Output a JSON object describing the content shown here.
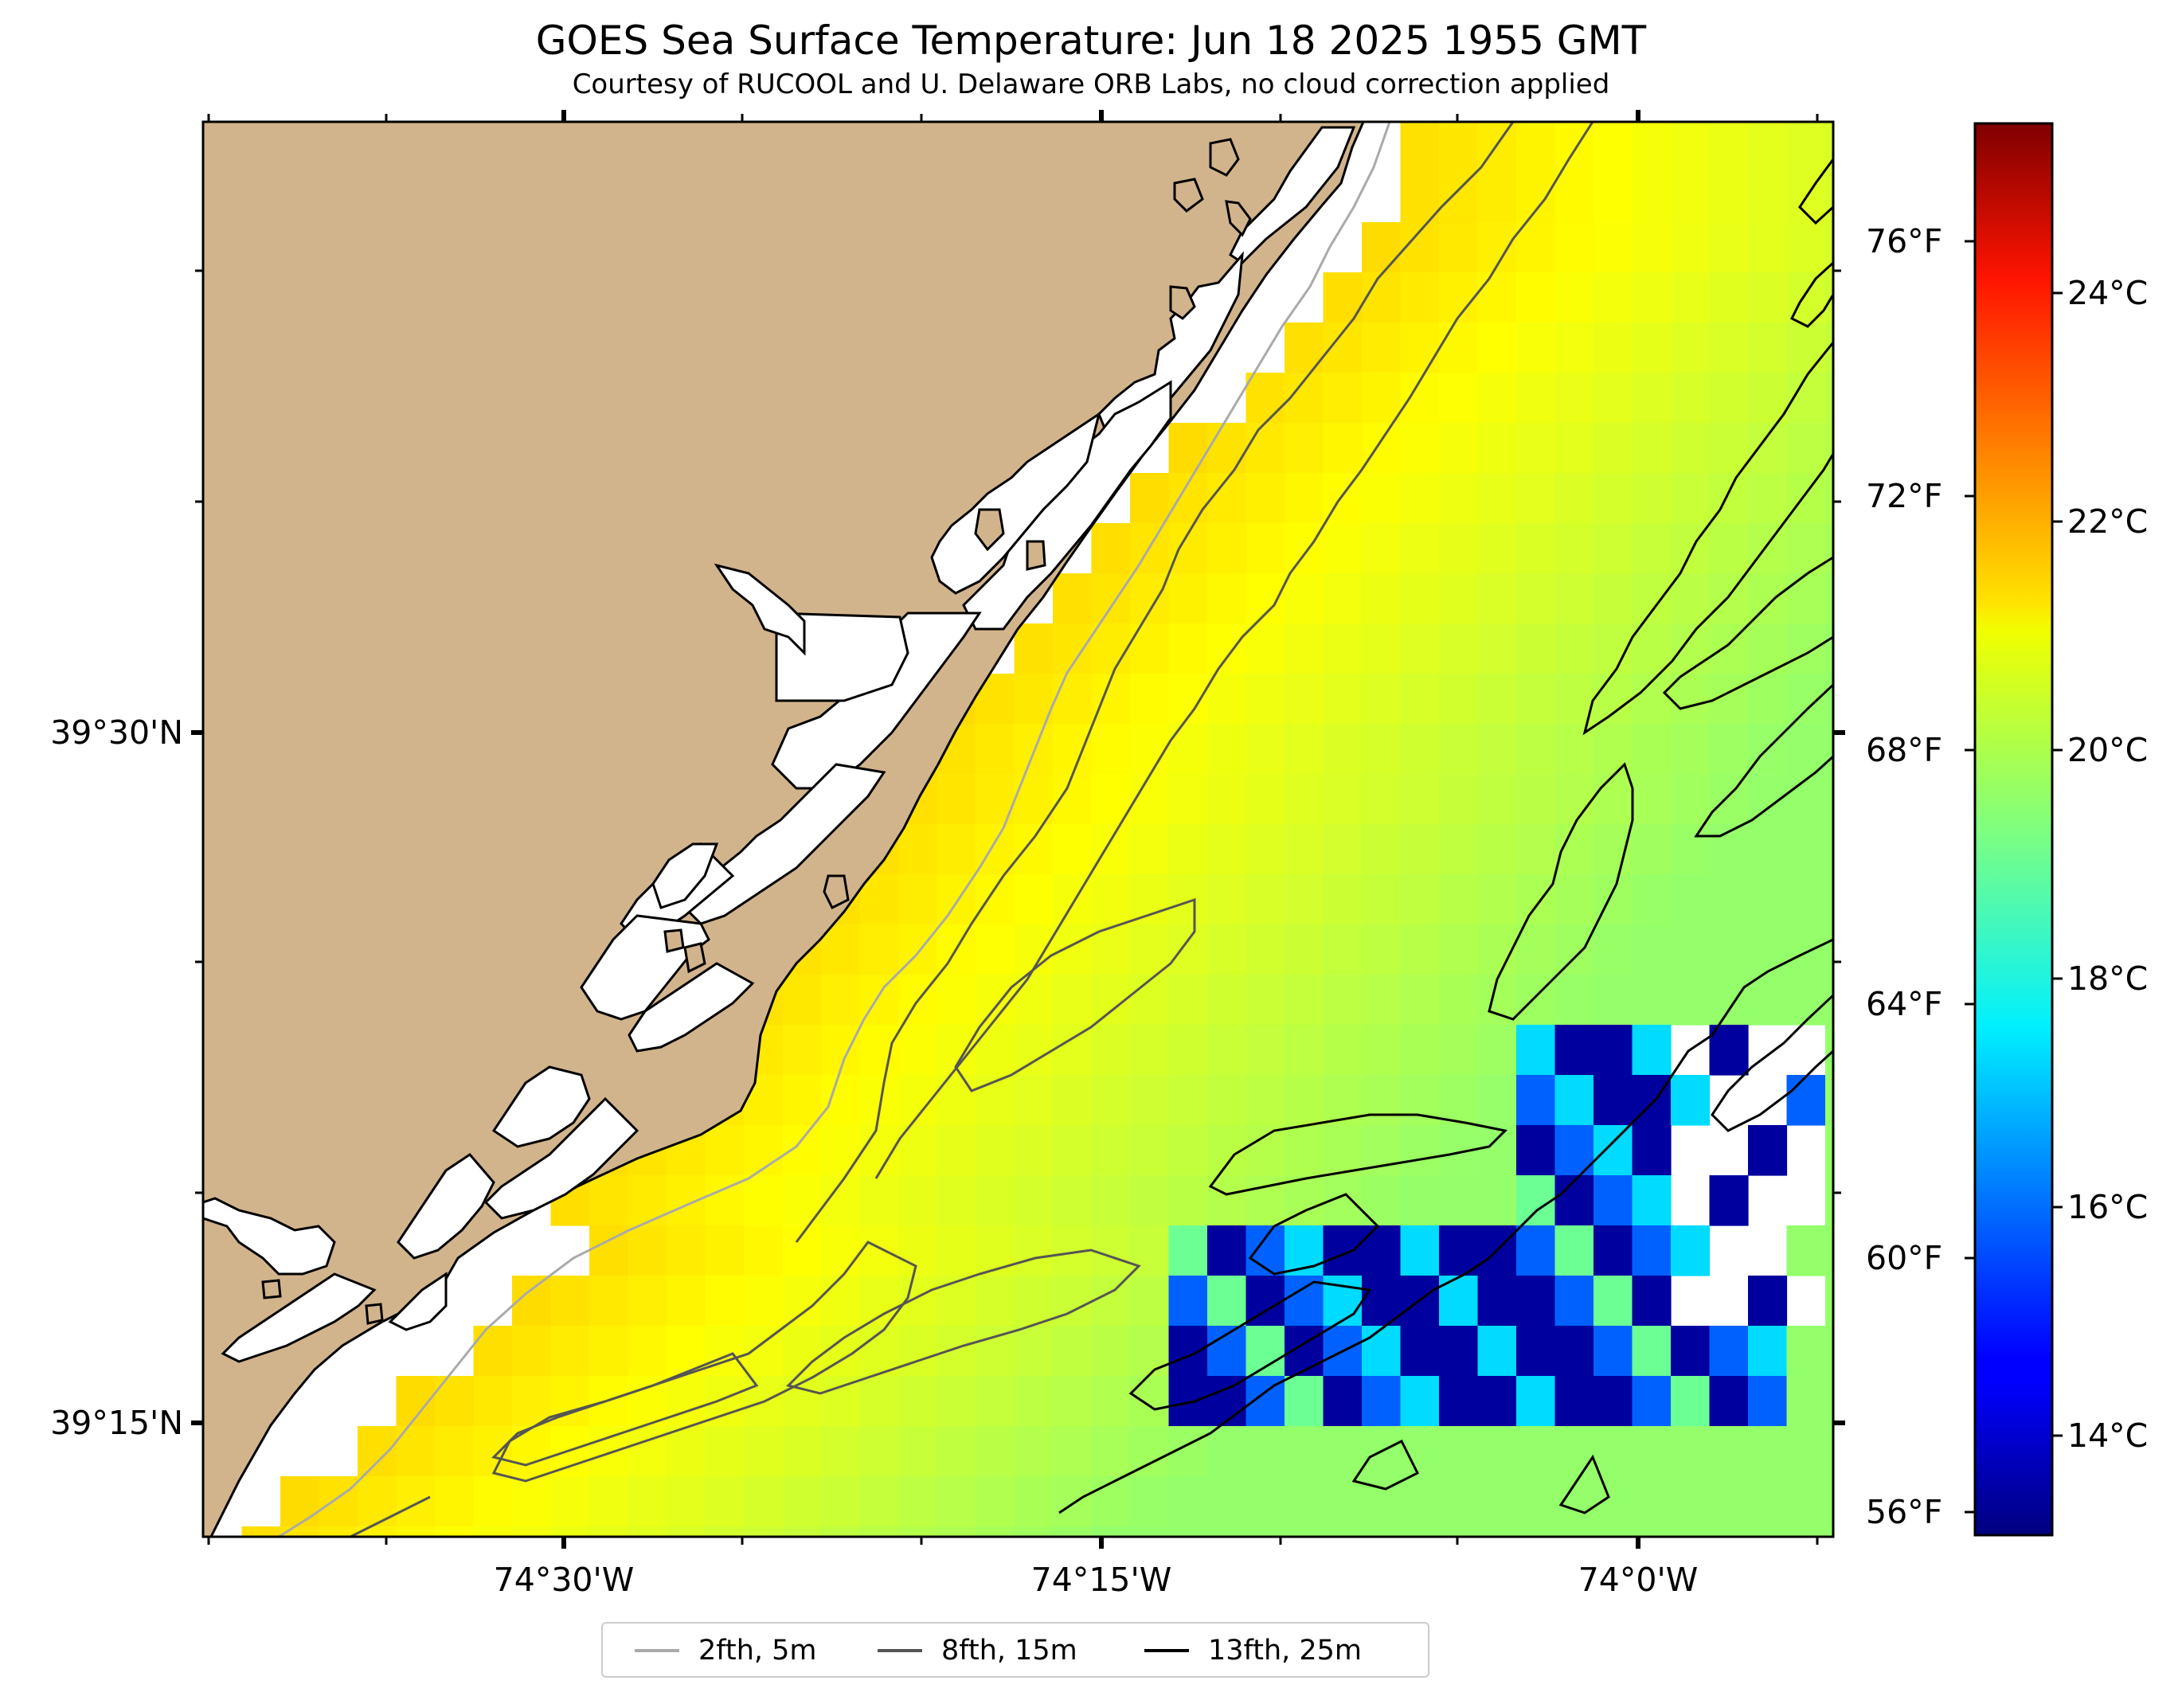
{
  "title": "GOES Sea Surface Temperature: Jun 18 2025 1955 GMT",
  "subtitle": "Courtesy of RUCOOL and U. Delaware ORB Labs, no cloud correction applied",
  "lat_labels": [
    "39°30'N",
    "39°15'N"
  ],
  "lon_labels": [
    "74°30'W",
    "74°15'W",
    "74°0'W"
  ],
  "colorbar": {
    "celsius_labels": [
      "24°C",
      "22°C",
      "20°C",
      "18°C",
      "16°C",
      "14°C"
    ],
    "fahrenheit_labels": [
      "76°F",
      "72°F",
      "68°F",
      "64°F",
      "60°F",
      "56°F"
    ],
    "colormap": "jet",
    "range_c": [
      12.8,
      25.2
    ]
  },
  "legend": [
    {
      "label": "2fth, 5m",
      "color": "#aaaaaa"
    },
    {
      "label": "8fth, 15m",
      "color": "#555555"
    },
    {
      "label": "13fth, 25m",
      "color": "#000000"
    }
  ],
  "colors": {
    "land": "#d2b48c",
    "coast": "#000000",
    "no_data": "#ffffff"
  }
}
